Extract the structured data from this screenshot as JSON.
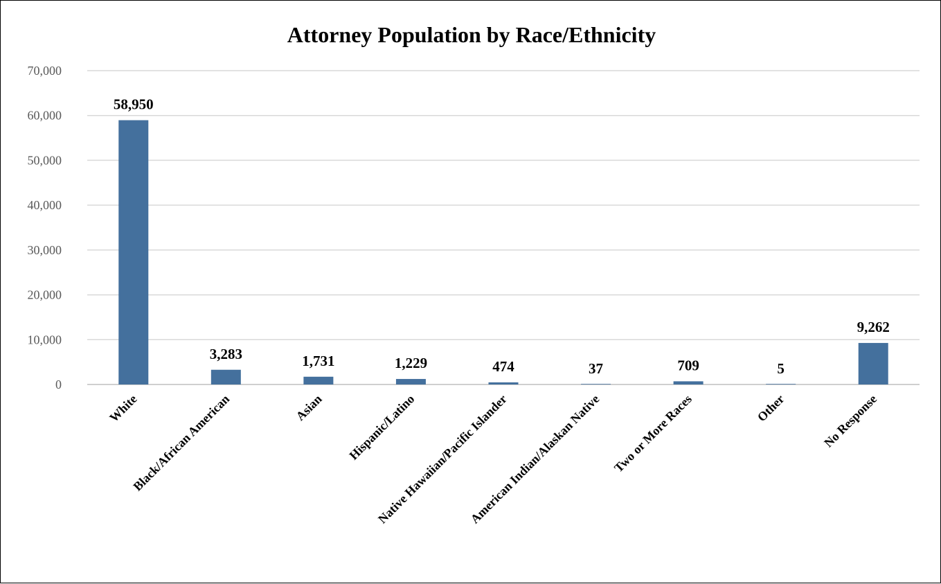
{
  "chart_data": {
    "type": "bar",
    "title": "Attorney Population by Race/Ethnicity",
    "xlabel": "",
    "ylabel": "",
    "categories": [
      "White",
      "Black/African American",
      "Asian",
      "Hispanic/Latino",
      "Native Hawaiian/Pacific Islander",
      "American Indian/Alaskan Native",
      "Two or More Races",
      "Other",
      "No Response"
    ],
    "values": [
      58950,
      3283,
      1731,
      1229,
      474,
      37,
      709,
      5,
      9262
    ],
    "data_labels": [
      "58,950",
      "3,283",
      "1,731",
      "1,229",
      "474",
      "37",
      "709",
      "5",
      "9,262"
    ],
    "ylim": [
      0,
      70000
    ],
    "yticks": [
      0,
      10000,
      20000,
      30000,
      40000,
      50000,
      60000,
      70000
    ],
    "ytick_labels": [
      "0",
      "10,000",
      "20,000",
      "30,000",
      "40,000",
      "50,000",
      "60,000",
      "70,000"
    ],
    "grid": true,
    "legend": "none",
    "colors": {
      "bar": "#44709d",
      "gridline": "#d9d9d9",
      "axis_line": "#bfbfbf",
      "ytick_text": "#595959",
      "text": "#000000",
      "border": "#000000"
    }
  }
}
